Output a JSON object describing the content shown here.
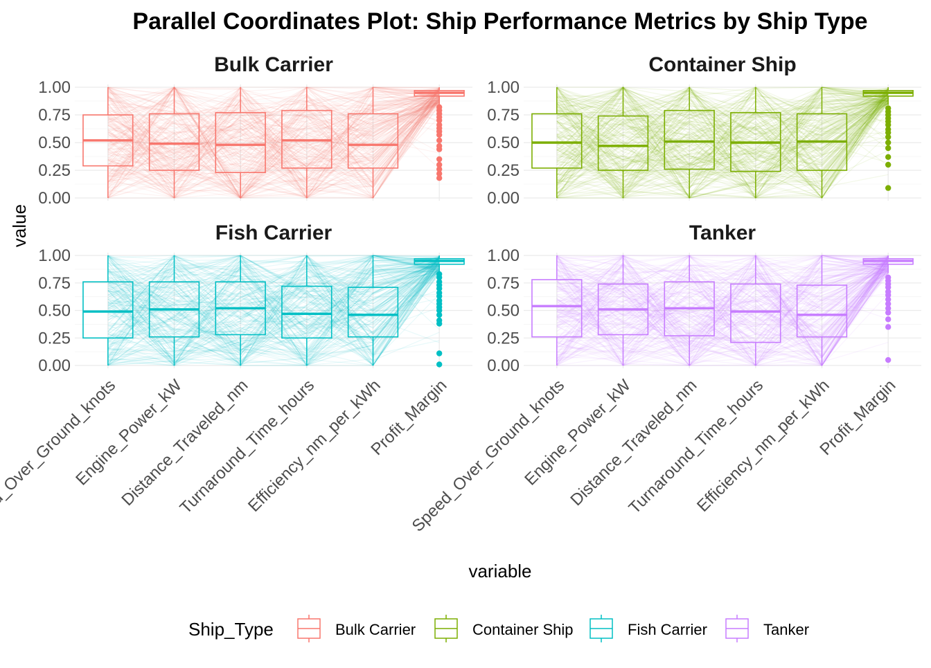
{
  "chart_data": {
    "type": "parallel-coordinates",
    "title": "Parallel Coordinates Plot: Ship Performance Metrics by Ship Type",
    "xlabel": "variable",
    "ylabel": "value",
    "ylim": [
      0,
      1
    ],
    "y_ticks": [
      "0.00",
      "0.25",
      "0.50",
      "0.75",
      "1.00"
    ],
    "variables": [
      "Speed_Over_Ground_knots",
      "Engine_Power_kW",
      "Distance_Traveled_nm",
      "Turnaround_Time_hours",
      "Efficiency_nm_per_kWh",
      "Profit_Margin"
    ],
    "legend": {
      "title": "Ship_Type",
      "position": "bottom"
    },
    "grid": true,
    "facets": [
      {
        "name": "Bulk Carrier",
        "color": "#F8766D",
        "boxes": [
          {
            "q1": 0.29,
            "median": 0.52,
            "q3": 0.75,
            "min": 0.0,
            "max": 1.0
          },
          {
            "q1": 0.25,
            "median": 0.49,
            "q3": 0.76,
            "min": 0.0,
            "max": 1.0
          },
          {
            "q1": 0.23,
            "median": 0.48,
            "q3": 0.77,
            "min": 0.0,
            "max": 1.0
          },
          {
            "q1": 0.27,
            "median": 0.52,
            "q3": 0.79,
            "min": 0.0,
            "max": 1.0
          },
          {
            "q1": 0.27,
            "median": 0.48,
            "q3": 0.76,
            "min": 0.0,
            "max": 1.0
          },
          {
            "q1": 0.92,
            "median": 0.95,
            "q3": 0.97,
            "min": 0.84,
            "max": 1.0
          }
        ],
        "outliers": [
          0.18,
          0.22,
          0.26,
          0.3,
          0.35,
          0.44,
          0.47,
          0.52,
          0.57,
          0.6,
          0.63,
          0.66,
          0.7,
          0.73,
          0.76,
          0.79,
          0.82
        ]
      },
      {
        "name": "Container Ship",
        "color": "#7CAE00",
        "boxes": [
          {
            "q1": 0.27,
            "median": 0.5,
            "q3": 0.76,
            "min": 0.0,
            "max": 1.0
          },
          {
            "q1": 0.25,
            "median": 0.47,
            "q3": 0.74,
            "min": 0.0,
            "max": 1.0
          },
          {
            "q1": 0.26,
            "median": 0.51,
            "q3": 0.79,
            "min": 0.0,
            "max": 1.0
          },
          {
            "q1": 0.24,
            "median": 0.5,
            "q3": 0.77,
            "min": 0.0,
            "max": 1.0
          },
          {
            "q1": 0.25,
            "median": 0.51,
            "q3": 0.76,
            "min": 0.0,
            "max": 1.0
          },
          {
            "q1": 0.92,
            "median": 0.95,
            "q3": 0.97,
            "min": 0.84,
            "max": 1.0
          }
        ],
        "outliers": [
          0.09,
          0.3,
          0.37,
          0.45,
          0.5,
          0.55,
          0.59,
          0.62,
          0.66,
          0.69,
          0.72,
          0.75,
          0.78,
          0.81
        ]
      },
      {
        "name": "Fish Carrier",
        "color": "#00BFC4",
        "boxes": [
          {
            "q1": 0.25,
            "median": 0.49,
            "q3": 0.76,
            "min": 0.0,
            "max": 1.0
          },
          {
            "q1": 0.26,
            "median": 0.51,
            "q3": 0.76,
            "min": 0.0,
            "max": 1.0
          },
          {
            "q1": 0.28,
            "median": 0.52,
            "q3": 0.76,
            "min": 0.0,
            "max": 1.0
          },
          {
            "q1": 0.25,
            "median": 0.47,
            "q3": 0.72,
            "min": 0.0,
            "max": 1.0
          },
          {
            "q1": 0.26,
            "median": 0.46,
            "q3": 0.71,
            "min": 0.0,
            "max": 1.0
          },
          {
            "q1": 0.92,
            "median": 0.95,
            "q3": 0.97,
            "min": 0.84,
            "max": 1.0
          }
        ],
        "outliers": [
          0.01,
          0.11,
          0.38,
          0.41,
          0.46,
          0.5,
          0.53,
          0.56,
          0.59,
          0.63,
          0.66,
          0.7,
          0.73,
          0.76,
          0.8,
          0.83
        ]
      },
      {
        "name": "Tanker",
        "color": "#C77CFF",
        "boxes": [
          {
            "q1": 0.26,
            "median": 0.54,
            "q3": 0.78,
            "min": 0.0,
            "max": 1.0
          },
          {
            "q1": 0.28,
            "median": 0.51,
            "q3": 0.74,
            "min": 0.0,
            "max": 1.0
          },
          {
            "q1": 0.27,
            "median": 0.52,
            "q3": 0.76,
            "min": 0.0,
            "max": 1.0
          },
          {
            "q1": 0.21,
            "median": 0.49,
            "q3": 0.74,
            "min": 0.0,
            "max": 1.0
          },
          {
            "q1": 0.26,
            "median": 0.46,
            "q3": 0.73,
            "min": 0.0,
            "max": 1.0
          },
          {
            "q1": 0.92,
            "median": 0.95,
            "q3": 0.97,
            "min": 0.84,
            "max": 1.0
          }
        ],
        "outliers": [
          0.05,
          0.35,
          0.42,
          0.48,
          0.52,
          0.56,
          0.6,
          0.64,
          0.67,
          0.71,
          0.74,
          0.77,
          0.8
        ]
      }
    ]
  }
}
